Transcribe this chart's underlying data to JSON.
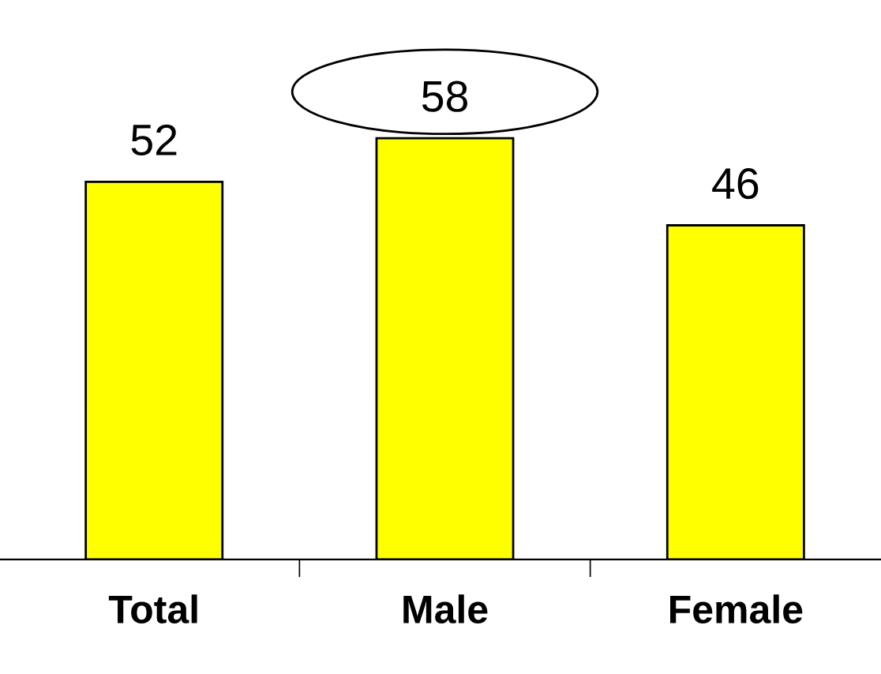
{
  "chart_data": {
    "type": "bar",
    "categories": [
      "Total",
      "Male",
      "Female"
    ],
    "values": [
      52,
      58,
      46
    ],
    "color": "#ffff00",
    "data_labels": true,
    "grid": false,
    "legend": false
  }
}
